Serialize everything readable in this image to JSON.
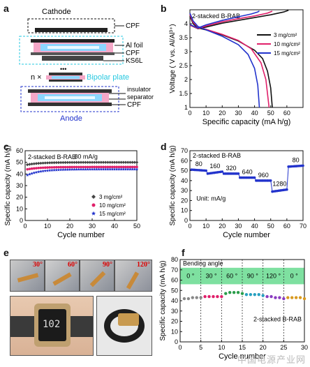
{
  "panel_labels": {
    "a": "a",
    "b": "b",
    "c": "c",
    "d": "d",
    "e": "e",
    "f": "f"
  },
  "schematic": {
    "cathode": "Cathode",
    "cpf_top": "CPF",
    "al_foil": "Al foil",
    "cpf_mid": "CPF",
    "ks6l": "KS6L",
    "n_times": "n ×",
    "dots": "•••",
    "bipolar_plate": "Bipolar plate",
    "insulator": "insulator",
    "separator": "separator",
    "cpf_bottom": "CPF",
    "anode": "Anode"
  },
  "colors": {
    "black": "#111111",
    "pink": "#e0206a",
    "blue": "#2233cc",
    "cyan": "#27c8e0",
    "green_band": "#7ee0a0"
  },
  "photos": {
    "angles": [
      "30°",
      "60°",
      "90°",
      "120°"
    ],
    "watch_display": "102"
  },
  "watermark": "中国电源产业网",
  "chart_data": [
    {
      "id": "b",
      "type": "line",
      "annotation": "2-stacked B-RAB",
      "xlabel": "Specific capacity (mA h/g)",
      "ylabel": "Voltage ( V vs. Al/Al³⁺)",
      "xlim": [
        0,
        70
      ],
      "ylim": [
        1,
        4.5
      ],
      "xticks": [
        0,
        10,
        20,
        30,
        40,
        50,
        60
      ],
      "yticks": [
        1,
        1.5,
        2,
        2.5,
        3,
        3.5,
        4
      ],
      "series": [
        {
          "name": "3 mg/cm²",
          "color": "#111111",
          "charge": [
            [
              0,
              3.95
            ],
            [
              5,
              3.82
            ],
            [
              10,
              3.88
            ],
            [
              20,
              4.02
            ],
            [
              30,
              4.12
            ],
            [
              40,
              4.22
            ],
            [
              50,
              4.32
            ],
            [
              58,
              4.42
            ],
            [
              61,
              4.48
            ]
          ],
          "discharge": [
            [
              0,
              4.28
            ],
            [
              2,
              4.0
            ],
            [
              5,
              3.85
            ],
            [
              10,
              3.78
            ],
            [
              20,
              3.6
            ],
            [
              30,
              3.38
            ],
            [
              40,
              3.05
            ],
            [
              45,
              2.75
            ],
            [
              48,
              2.3
            ],
            [
              50,
              1.7
            ],
            [
              51,
              1.0
            ]
          ]
        },
        {
          "name": "10 mg/cm²",
          "color": "#e0206a",
          "charge": [
            [
              0,
              3.95
            ],
            [
              5,
              3.83
            ],
            [
              10,
              3.92
            ],
            [
              20,
              4.07
            ],
            [
              30,
              4.18
            ],
            [
              40,
              4.28
            ],
            [
              48,
              4.38
            ],
            [
              51,
              4.45
            ]
          ],
          "discharge": [
            [
              0,
              4.33
            ],
            [
              2,
              4.05
            ],
            [
              5,
              3.88
            ],
            [
              10,
              3.8
            ],
            [
              20,
              3.62
            ],
            [
              30,
              3.4
            ],
            [
              38,
              3.1
            ],
            [
              44,
              2.6
            ],
            [
              47,
              2.0
            ],
            [
              49,
              1.0
            ]
          ]
        },
        {
          "name": "15 mg/cm²",
          "color": "#2233cc",
          "charge": [
            [
              0,
              3.97
            ],
            [
              5,
              3.85
            ],
            [
              10,
              3.96
            ],
            [
              20,
              4.12
            ],
            [
              30,
              4.25
            ],
            [
              38,
              4.35
            ],
            [
              42,
              4.42
            ],
            [
              43,
              4.46
            ]
          ],
          "discharge": [
            [
              0,
              4.38
            ],
            [
              2,
              4.1
            ],
            [
              5,
              3.9
            ],
            [
              10,
              3.78
            ],
            [
              20,
              3.55
            ],
            [
              30,
              3.25
            ],
            [
              36,
              2.9
            ],
            [
              40,
              2.4
            ],
            [
              42,
              1.8
            ],
            [
              43,
              1.0
            ]
          ]
        }
      ]
    },
    {
      "id": "c",
      "type": "scatter",
      "annotation": "2-stacked B-RAB",
      "rate_label": "80 mA/g",
      "xlabel": "Cycle number",
      "ylabel": "Specific capacity (mA h/g)",
      "xlim": [
        0,
        50
      ],
      "ylim": [
        0,
        60
      ],
      "xticks": [
        0,
        10,
        20,
        30,
        40,
        50
      ],
      "yticks": [
        0,
        10,
        20,
        30,
        40,
        50,
        60
      ],
      "series": [
        {
          "name": "3 mg/cm²",
          "color": "#444444",
          "marker": "diamond",
          "start": 48,
          "plateau": 50
        },
        {
          "name": "10 mg/cm²",
          "color": "#e0206a",
          "marker": "circle",
          "start": 44,
          "plateau": 46
        },
        {
          "name": "15 mg/cm²",
          "color": "#2233cc",
          "marker": "star",
          "start": 39,
          "plateau": 44
        }
      ]
    },
    {
      "id": "d",
      "type": "scatter",
      "annotation": "2-stacked B-RAB",
      "unit_label": "Unit: mA/g",
      "xlabel": "Cycle number",
      "ylabel": "Specific capacity (mA h/g)",
      "xlim": [
        0,
        70
      ],
      "ylim": [
        0,
        70
      ],
      "xticks": [
        0,
        10,
        20,
        30,
        40,
        50,
        60,
        70
      ],
      "yticks": [
        0,
        10,
        20,
        30,
        40,
        50,
        60,
        70
      ],
      "segments": [
        {
          "rate": "80",
          "x0": 1,
          "x1": 10,
          "y0": 51,
          "y1": 50
        },
        {
          "rate": "160",
          "x0": 11,
          "x1": 20,
          "y0": 47,
          "y1": 49
        },
        {
          "rate": "320",
          "x0": 21,
          "x1": 30,
          "y0": 47,
          "y1": 47
        },
        {
          "rate": "640",
          "x0": 31,
          "x1": 40,
          "y0": 43,
          "y1": 43
        },
        {
          "rate": "960",
          "x0": 41,
          "x1": 50,
          "y0": 40,
          "y1": 40
        },
        {
          "rate": "1280",
          "x0": 51,
          "x1": 60,
          "y0": 29,
          "y1": 31
        },
        {
          "rate": "80",
          "x0": 61,
          "x1": 70,
          "y0": 54,
          "y1": 55
        }
      ]
    },
    {
      "id": "f",
      "type": "scatter",
      "annotation": "2-stacked B-RAB",
      "band_label": "Bending angle",
      "angle_labels": [
        "0 °",
        "30 °",
        "60 °",
        "90 °",
        "120 °",
        "0 °"
      ],
      "xlabel": "Cycle number",
      "ylabel": "Specific capacity (mA h/g)",
      "xlim": [
        0,
        30
      ],
      "ylim": [
        0,
        80
      ],
      "xticks": [
        0,
        5,
        10,
        15,
        20,
        25,
        30
      ],
      "yticks": [
        0,
        10,
        20,
        30,
        40,
        50,
        60,
        70,
        80
      ],
      "points": [
        [
          1,
          42,
          "#888888"
        ],
        [
          2,
          42,
          "#888888"
        ],
        [
          3,
          43,
          "#888888"
        ],
        [
          4,
          43,
          "#888888"
        ],
        [
          5,
          43,
          "#888888"
        ],
        [
          6,
          44,
          "#e0206a"
        ],
        [
          7,
          44,
          "#e0206a"
        ],
        [
          8,
          44,
          "#e0206a"
        ],
        [
          9,
          44,
          "#e0206a"
        ],
        [
          10,
          44,
          "#e0206a"
        ],
        [
          11,
          47,
          "#2a9d4a"
        ],
        [
          12,
          48,
          "#2a9d4a"
        ],
        [
          13,
          48,
          "#2a9d4a"
        ],
        [
          14,
          48,
          "#2a9d4a"
        ],
        [
          15,
          47,
          "#2a9d4a"
        ],
        [
          16,
          46,
          "#27a0c0"
        ],
        [
          17,
          46,
          "#27a0c0"
        ],
        [
          18,
          46,
          "#27a0c0"
        ],
        [
          19,
          46,
          "#27a0c0"
        ],
        [
          20,
          45,
          "#27a0c0"
        ],
        [
          21,
          44,
          "#8a3cc0"
        ],
        [
          22,
          44,
          "#8a3cc0"
        ],
        [
          23,
          43,
          "#8a3cc0"
        ],
        [
          24,
          43,
          "#8a3cc0"
        ],
        [
          25,
          42,
          "#8a3cc0"
        ],
        [
          26,
          43,
          "#d89a20"
        ],
        [
          27,
          43,
          "#d89a20"
        ],
        [
          28,
          43,
          "#d89a20"
        ],
        [
          29,
          43,
          "#d89a20"
        ],
        [
          30,
          42,
          "#d89a20"
        ]
      ]
    }
  ]
}
